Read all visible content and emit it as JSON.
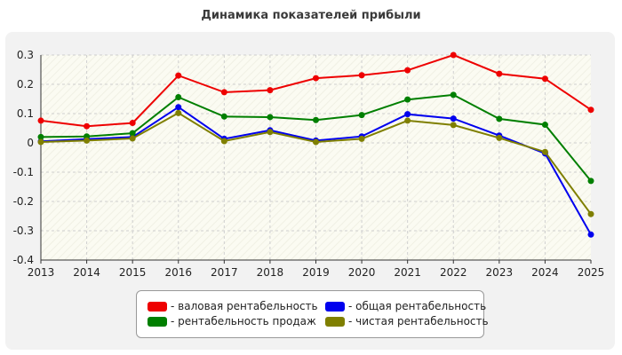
{
  "chart_data": {
    "type": "line",
    "title": "Динамика показателей прибыли",
    "xlabel": "",
    "ylabel": "",
    "x": [
      "2013",
      "2014",
      "2015",
      "2016",
      "2017",
      "2018",
      "2019",
      "2020",
      "2021",
      "2022",
      "2023",
      "2024",
      "2025"
    ],
    "ylim": [
      -0.4,
      0.3
    ],
    "yticks": [
      0.3,
      0.2,
      0.1,
      0,
      -0.1,
      -0.2,
      -0.3,
      -0.4
    ],
    "ytick_labels": [
      "0.3",
      "0.2",
      "0.1",
      "0",
      "-0.1",
      "-0.2",
      "-0.3",
      "-0.4"
    ],
    "grid": true,
    "legend_position": "bottom",
    "series": [
      {
        "name": "- валовая рентабельность",
        "color": "#ee0000",
        "values": [
          0.076,
          0.057,
          0.068,
          0.23,
          0.173,
          0.18,
          0.221,
          0.231,
          0.248,
          0.3,
          0.236,
          0.219,
          0.113
        ]
      },
      {
        "name": "- общая рентабельность",
        "color": "#0000ee",
        "values": [
          0.005,
          0.013,
          0.02,
          0.122,
          0.014,
          0.043,
          0.008,
          0.022,
          0.098,
          0.083,
          0.025,
          -0.036,
          -0.313
        ]
      },
      {
        "name": "- рентабельность продаж",
        "color": "#007f00",
        "values": [
          0.02,
          0.022,
          0.033,
          0.156,
          0.09,
          0.088,
          0.078,
          0.095,
          0.148,
          0.164,
          0.082,
          0.062,
          -0.13
        ]
      },
      {
        "name": "- чистая рентабельность",
        "color": "#7f7f00",
        "values": [
          0.003,
          0.008,
          0.015,
          0.102,
          0.006,
          0.037,
          0.003,
          0.014,
          0.076,
          0.061,
          0.017,
          -0.031,
          -0.243
        ]
      }
    ]
  }
}
